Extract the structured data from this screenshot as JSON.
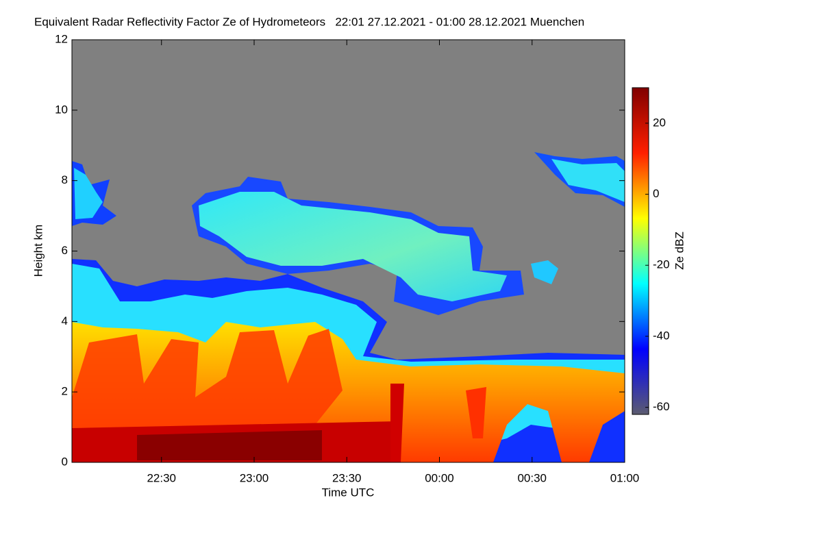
{
  "chart_data": {
    "type": "heatmap",
    "title": "Equivalent Radar Reflectivity Factor Ze of Hydrometeors   22:01 27.12.2021 - 01:00 28.12.2021 Muenchen",
    "x_label": "Time UTC",
    "y_label": "Height km",
    "xlim": [
      1,
      180
    ],
    "xticks": [
      {
        "value": 30,
        "label": "22:30"
      },
      {
        "value": 60,
        "label": "23:00"
      },
      {
        "value": 90,
        "label": "23:30"
      },
      {
        "value": 120,
        "label": "00:00"
      },
      {
        "value": 150,
        "label": "00:30"
      },
      {
        "value": 180,
        "label": "01:00"
      }
    ],
    "ylim": [
      0,
      12
    ],
    "yticks": [
      0,
      2,
      4,
      6,
      8,
      10,
      12
    ],
    "colorbar": {
      "label": "Ze dBZ",
      "lim": [
        -62,
        30
      ],
      "ticks": [
        -60,
        -40,
        -20,
        0,
        20
      ],
      "colormap": [
        "#5c5c70",
        "#0000ff",
        "#00ffff",
        "#ffff00",
        "#ff2000",
        "#800000"
      ]
    },
    "background": "#808080"
  }
}
